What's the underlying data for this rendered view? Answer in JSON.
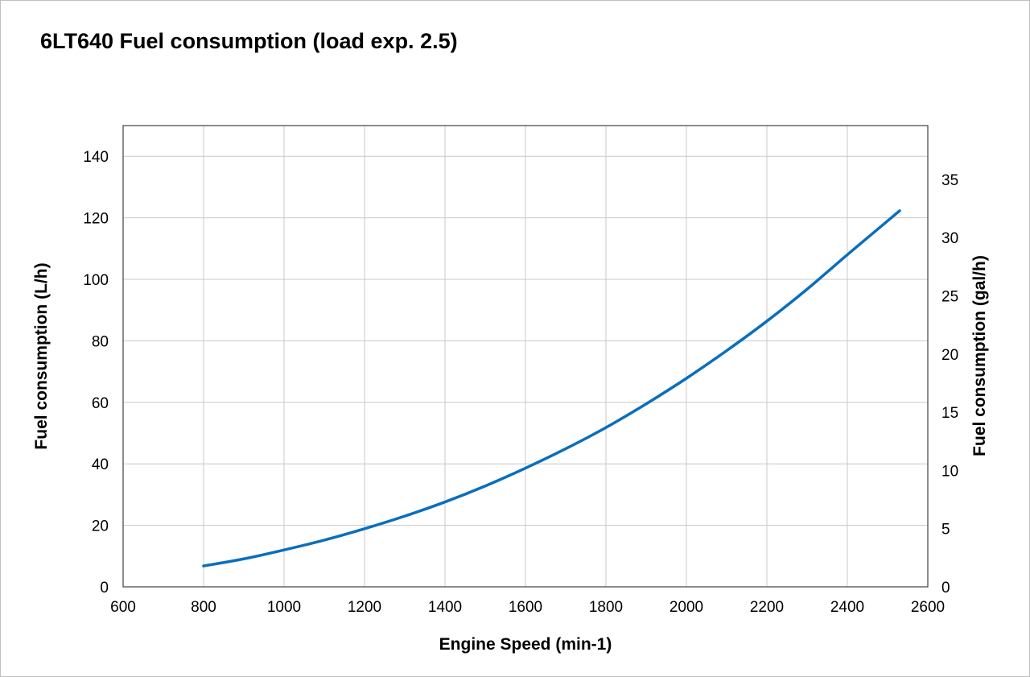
{
  "chart_data": {
    "type": "line",
    "title": "6LT640 Fuel consumption (load exp. 2.5)",
    "xlabel": "Engine Speed (min-1)",
    "ylabel": "Fuel consumption (L/h)",
    "y2label": "Fuel consumption (gal/h)",
    "xlim": [
      600,
      2600
    ],
    "ylim": [
      0,
      150
    ],
    "y2lim": [
      0,
      39.63
    ],
    "xticks": [
      600,
      800,
      1000,
      1200,
      1400,
      1600,
      1800,
      2000,
      2200,
      2400,
      2600
    ],
    "yticks": [
      0,
      20,
      40,
      60,
      80,
      100,
      120,
      140
    ],
    "y2ticks": [
      0,
      5,
      10,
      15,
      20,
      25,
      30,
      35
    ],
    "grid": true,
    "legend": "none",
    "series": [
      {
        "color": "#0a6ebd",
        "x": [
          800,
          900,
          1000,
          1100,
          1200,
          1300,
          1400,
          1500,
          1600,
          1700,
          1800,
          1900,
          2000,
          2100,
          2200,
          2300,
          2400,
          2500,
          2530
        ],
        "values": [
          6.8,
          9.1,
          12.0,
          15.2,
          18.9,
          23.0,
          27.6,
          32.8,
          38.6,
          44.9,
          51.8,
          59.5,
          67.8,
          76.8,
          86.4,
          96.8,
          108.0,
          119.0,
          122.3
        ]
      }
    ]
  }
}
